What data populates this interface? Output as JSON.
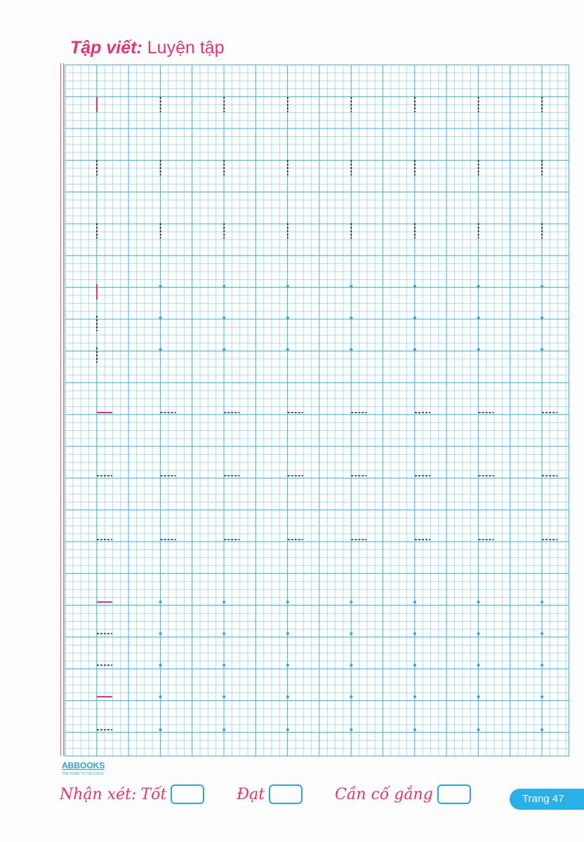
{
  "title": {
    "bold": "Tập viết",
    "sep": ":",
    "rest": " Luyện tập"
  },
  "brand": {
    "name": "ABBOOKS",
    "tagline": "THE ROAD TO SUCCESS"
  },
  "rating": {
    "label": "Nhận xét:",
    "options": [
      "Tốt",
      "Đạt",
      "Cần cố gắng"
    ]
  },
  "page": "Trang 47",
  "colors": {
    "accent": "#e8336d",
    "grid": "#3fb8e6",
    "trace": "#222222"
  },
  "practice_rows": [
    {
      "stroke": "vertical",
      "model": true,
      "guide": "dashed"
    },
    {
      "stroke": "vertical",
      "model": false,
      "guide": "dashed"
    },
    {
      "stroke": "vertical",
      "model": false,
      "guide": "dashed"
    },
    {
      "stroke": "vertical",
      "model": true,
      "guide": "dot"
    },
    {
      "stroke": "vertical",
      "model": false,
      "guide": "dot"
    },
    {
      "stroke": "vertical",
      "model": false,
      "guide": "dot"
    },
    {
      "stroke": "horizontal",
      "model": true,
      "guide": "dashed"
    },
    {
      "stroke": "horizontal",
      "model": false,
      "guide": "dashed"
    },
    {
      "stroke": "horizontal",
      "model": false,
      "guide": "dashed"
    },
    {
      "stroke": "horizontal",
      "model": true,
      "guide": "dot"
    },
    {
      "stroke": "horizontal",
      "model": false,
      "guide": "dot"
    },
    {
      "stroke": "horizontal",
      "model": false,
      "guide": "dot"
    },
    {
      "stroke": "horizontal",
      "model": true,
      "guide": "dot"
    },
    {
      "stroke": "horizontal",
      "model": false,
      "guide": "dot"
    }
  ]
}
